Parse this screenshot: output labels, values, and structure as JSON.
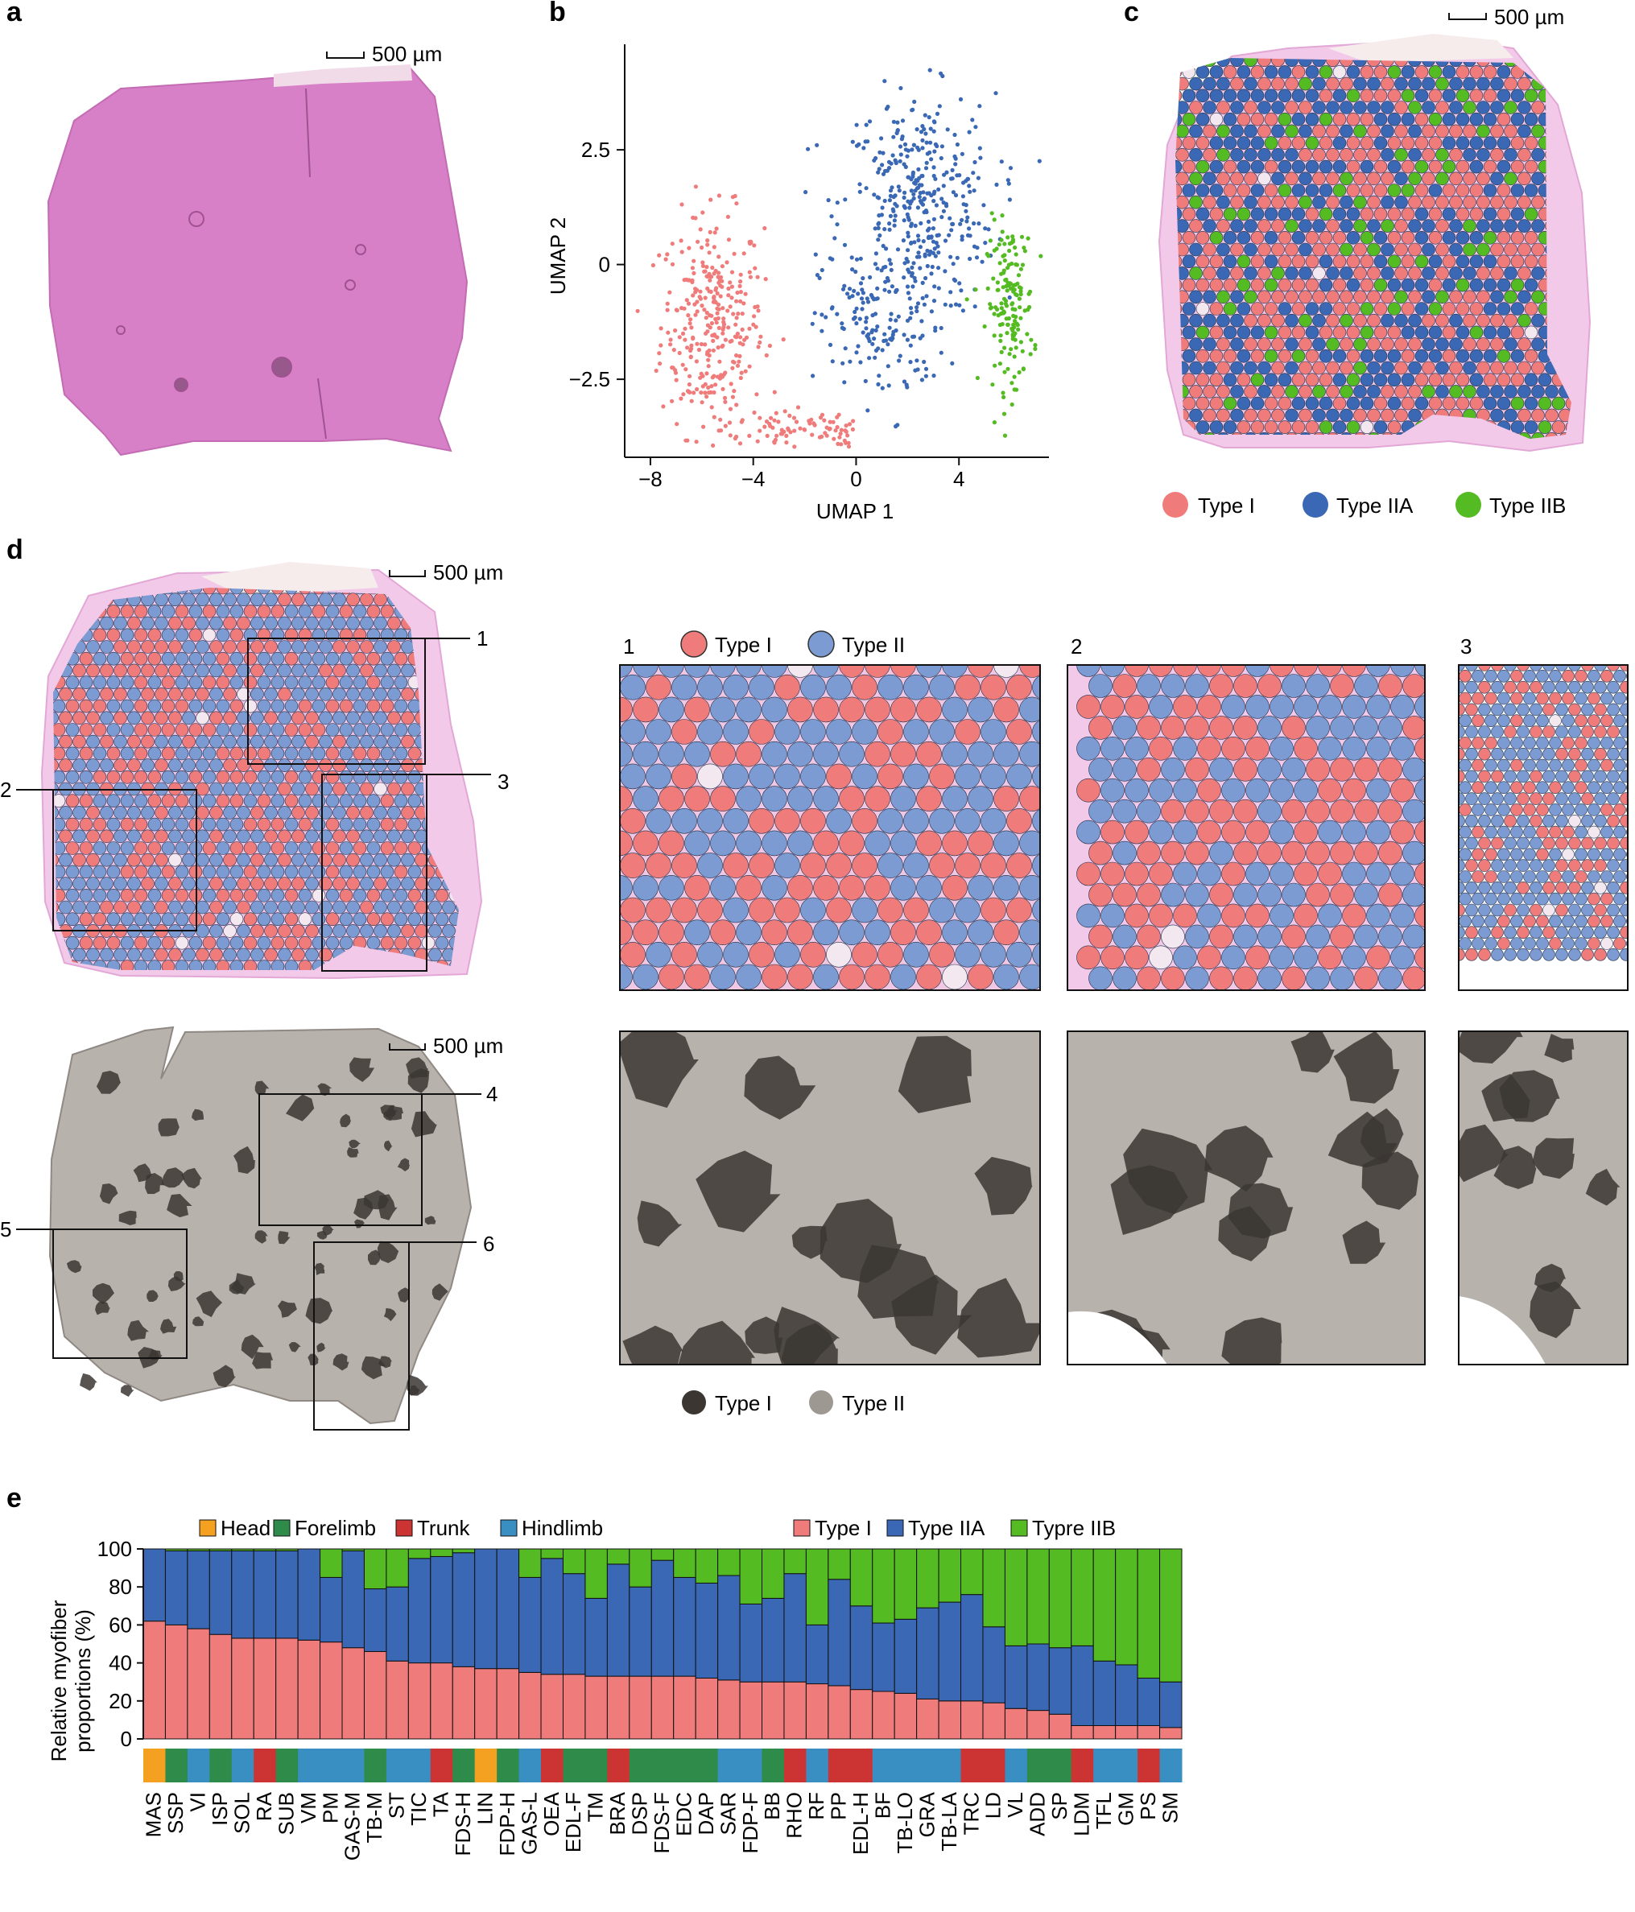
{
  "panels": {
    "a": {
      "label": "a",
      "scale_bar": "500 µm"
    },
    "b": {
      "label": "b"
    },
    "c": {
      "label": "c",
      "scale_bar": "500 µm"
    },
    "d": {
      "label": "d",
      "scale_bar_top": "500 µm",
      "scale_bar_bottom": "500 µm"
    },
    "e": {
      "label": "e"
    }
  },
  "legend_c": [
    "Type I",
    "Type IIA",
    "Type IIB"
  ],
  "legend_d_top": [
    "Type I",
    "Type II"
  ],
  "legend_d_bottom": [
    "Type I",
    "Type II"
  ],
  "box_labels": [
    "1",
    "2",
    "3",
    "4",
    "5",
    "6"
  ],
  "colors": {
    "type_i": "#f07b7b",
    "type_iia": "#3a68b4",
    "type_ii_light": "#7b9bd2",
    "type_iib": "#55bb22",
    "head": "#f4a020",
    "forelimb": "#2e8b4a",
    "trunk": "#cc3333",
    "hindlimb": "#3a8fc2",
    "he_stain": "#d77fc7",
    "grey_dark": "#3b3632",
    "grey_light": "#b8b2ad"
  },
  "chart_data": [
    {
      "panel": "b",
      "type": "scatter",
      "xlabel": "UMAP 1",
      "ylabel": "UMAP 2",
      "xlim": [
        -9,
        7.5
      ],
      "ylim": [
        -4.2,
        4.8
      ],
      "xticks": [
        -8,
        -4,
        0,
        4
      ],
      "yticks": [
        -2.5,
        0,
        2.5
      ],
      "series": [
        {
          "name": "Type I",
          "color": "#f07b7b"
        },
        {
          "name": "Type IIA",
          "color": "#3a68b4"
        },
        {
          "name": "Type IIB",
          "color": "#55bb22"
        }
      ]
    },
    {
      "panel": "e",
      "type": "bar",
      "stacked": true,
      "ylabel": "Relative myofiber\nproportions (%)",
      "ylim": [
        0,
        100
      ],
      "yticks": [
        0,
        20,
        40,
        60,
        80,
        100
      ],
      "region_legend": [
        "Head",
        "Forelimb",
        "Trunk",
        "Hindlimb"
      ],
      "type_legend": [
        "Type I",
        "Type IIA",
        "Typre IIB"
      ],
      "categories": [
        "MAS",
        "SSP",
        "VI",
        "ISP",
        "SOL",
        "RA",
        "SUB",
        "VM",
        "PM",
        "GAS-M",
        "TB-M",
        "ST",
        "TIC",
        "TA",
        "FDS-H",
        "LIN",
        "FDP-H",
        "GAS-L",
        "OEA",
        "EDL-F",
        "TM",
        "BRA",
        "DSP",
        "FDS-F",
        "EDC",
        "DAP",
        "SAR",
        "FDP-F",
        "BB",
        "RHO",
        "RF",
        "PP",
        "EDL-H",
        "BF",
        "TB-LO",
        "GRA",
        "TB-LA",
        "TRC",
        "LD",
        "VL",
        "ADD",
        "SP",
        "LDM",
        "TFL",
        "GM",
        "PS",
        "SM"
      ],
      "regions": [
        "Head",
        "Forelimb",
        "Hindlimb",
        "Forelimb",
        "Hindlimb",
        "Trunk",
        "Forelimb",
        "Hindlimb",
        "Hindlimb",
        "Hindlimb",
        "Forelimb",
        "Hindlimb",
        "Hindlimb",
        "Trunk",
        "Forelimb",
        "Head",
        "Forelimb",
        "Hindlimb",
        "Trunk",
        "Forelimb",
        "Forelimb",
        "Trunk",
        "Forelimb",
        "Forelimb",
        "Forelimb",
        "Forelimb",
        "Hindlimb",
        "Hindlimb",
        "Forelimb",
        "Trunk",
        "Hindlimb",
        "Trunk",
        "Trunk",
        "Hindlimb",
        "Hindlimb",
        "Hindlimb",
        "Hindlimb",
        "Trunk",
        "Trunk",
        "Hindlimb",
        "Forelimb",
        "Forelimb",
        "Trunk",
        "Hindlimb",
        "Hindlimb",
        "Trunk",
        "Hindlimb"
      ],
      "series": [
        {
          "name": "Type I",
          "values": [
            62,
            60,
            58,
            55,
            53,
            53,
            53,
            52,
            51,
            48,
            46,
            41,
            40,
            40,
            38,
            37,
            37,
            35,
            34,
            34,
            33,
            33,
            33,
            33,
            33,
            32,
            31,
            30,
            30,
            30,
            29,
            28,
            26,
            25,
            24,
            21,
            20,
            20,
            19,
            16,
            15,
            13,
            7,
            7,
            7,
            7,
            6
          ]
        },
        {
          "name": "Type IIA",
          "values": [
            38,
            39,
            41,
            44,
            46,
            46,
            46,
            48,
            34,
            51,
            33,
            39,
            55,
            56,
            60,
            63,
            63,
            50,
            61,
            53,
            41,
            59,
            47,
            61,
            52,
            50,
            55,
            41,
            44,
            57,
            31,
            56,
            44,
            36,
            39,
            48,
            52,
            56,
            40,
            33,
            35,
            35,
            42,
            34,
            32,
            25,
            24
          ]
        },
        {
          "name": "Typre IIB",
          "values": [
            0,
            1,
            1,
            1,
            1,
            1,
            1,
            0,
            15,
            1,
            21,
            20,
            5,
            4,
            2,
            0,
            0,
            15,
            5,
            13,
            26,
            8,
            20,
            6,
            15,
            18,
            14,
            29,
            26,
            13,
            40,
            16,
            30,
            39,
            37,
            31,
            28,
            24,
            41,
            51,
            50,
            52,
            51,
            59,
            61,
            68,
            70
          ]
        }
      ]
    }
  ]
}
